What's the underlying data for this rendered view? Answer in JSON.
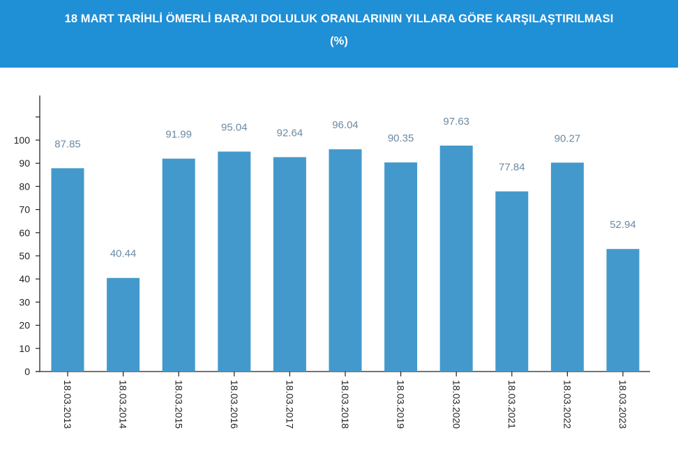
{
  "header": {
    "title": "18 MART TARİHLİ ÖMERLİ BARAJI DOLULUK ORANLARININ YILLARA GÖRE KARŞILAŞTIRILMASI",
    "subtitle": "(%)"
  },
  "colors": {
    "header_bg": "#1f8fd6",
    "bar": "#4399cb",
    "value_label": "#6b8aa3",
    "axis": "#222222"
  },
  "chart_data": {
    "type": "bar",
    "categories": [
      "18.03.2013",
      "18.03.2014",
      "18.03.2015",
      "18.03.2016",
      "18.03.2017",
      "18.03.2018",
      "18.03.2019",
      "18.03.2020",
      "18.03.2021",
      "18.03.2022",
      "18.03.2023"
    ],
    "values": [
      87.85,
      40.44,
      91.99,
      95.04,
      92.64,
      96.04,
      90.35,
      97.63,
      77.84,
      90.27,
      52.94
    ],
    "value_labels": [
      "87.85",
      "40.44",
      "91.99",
      "95.04",
      "92.64",
      "96.04",
      "90.35",
      "97.63",
      "77.84",
      "90.27",
      "52.94"
    ],
    "y_ticks": [
      "0",
      "10",
      "20",
      "30",
      "40",
      "50",
      "60",
      "70",
      "80",
      "90",
      "100"
    ],
    "ylim": [
      0,
      120
    ],
    "grid": false,
    "legend": "none"
  }
}
